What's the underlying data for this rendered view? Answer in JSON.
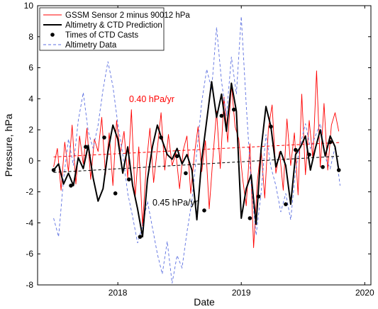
{
  "chart_data": {
    "type": "line",
    "xlabel": "Date",
    "ylabel": "Pressure, hPa",
    "xlim": [
      2017.35,
      2020.05
    ],
    "ylim": [
      -8,
      10
    ],
    "xticks": [
      2018,
      2019,
      2020
    ],
    "yticks": [
      -8,
      -6,
      -4,
      -2,
      0,
      2,
      4,
      6,
      8,
      10
    ],
    "grid": false,
    "legend_position": "top-left",
    "colors": {
      "gssm": "#ff0000",
      "prediction": "#000000",
      "casts": "#000000",
      "altimetry": "#5b6fe0",
      "red_trend": "#ff0000",
      "black_trend": "#000000"
    },
    "annotations": [
      {
        "text": "0.40 hPa/yr",
        "color": "#ff0000",
        "x": 2018.1,
        "y": 4.0
      },
      {
        "text": "0.45 hPa/yr",
        "color": "#000000",
        "x": 2018.3,
        "y": -2.6
      }
    ],
    "series": [
      {
        "name": "GSSM Sensor 2 minus 90012 hPa",
        "style": "thin-line",
        "x": [
          2017.48,
          2017.51,
          2017.54,
          2017.57,
          2017.6,
          2017.63,
          2017.66,
          2017.69,
          2017.72,
          2017.75,
          2017.78,
          2017.81,
          2017.84,
          2017.87,
          2017.9,
          2017.93,
          2017.96,
          2017.99,
          2018.02,
          2018.05,
          2018.08,
          2018.11,
          2018.14,
          2018.17,
          2018.2,
          2018.23,
          2018.26,
          2018.29,
          2018.32,
          2018.35,
          2018.38,
          2018.41,
          2018.44,
          2018.47,
          2018.5,
          2018.53,
          2018.56,
          2018.59,
          2018.62,
          2018.65,
          2018.68,
          2018.71,
          2018.74,
          2018.77,
          2018.8,
          2018.83,
          2018.86,
          2018.89,
          2018.92,
          2018.95,
          2018.98,
          2019.01,
          2019.04,
          2019.07,
          2019.1,
          2019.13,
          2019.16,
          2019.19,
          2019.22,
          2019.25,
          2019.28,
          2019.31,
          2019.34,
          2019.37,
          2019.4,
          2019.43,
          2019.46,
          2019.49,
          2019.52,
          2019.55,
          2019.58,
          2019.61,
          2019.64,
          2019.67,
          2019.7,
          2019.73,
          2019.76,
          2019.79
        ],
        "y": [
          -0.4,
          0.8,
          -1.9,
          1.2,
          -0.7,
          2.3,
          -1.5,
          1.6,
          -0.2,
          2.1,
          -1.2,
          1.4,
          0.6,
          2.8,
          -0.9,
          1.8,
          -1.6,
          2.6,
          0.5,
          1.9,
          -1.1,
          3.3,
          -2.4,
          0.9,
          -4.2,
          -0.3,
          2.1,
          -1.4,
          0.8,
          3.1,
          -0.6,
          1.7,
          -0.3,
          0.5,
          -1.8,
          0.7,
          1.6,
          -2.1,
          0.4,
          2.2,
          -0.7,
          1.3,
          -3.1,
          0.2,
          3.2,
          -0.5,
          4.1,
          1.2,
          4.9,
          2.2,
          1.4,
          -1.1,
          -2.9,
          1.1,
          -5.6,
          -1.3,
          0.8,
          -2.4,
          2.1,
          3.6,
          -0.8,
          0.6,
          -1.9,
          2.7,
          -0.3,
          1.8,
          -2.2,
          4.3,
          -0.9,
          2.6,
          0.1,
          5.8,
          -0.4,
          3.7,
          -0.6,
          2.3,
          3.1,
          1.9
        ]
      },
      {
        "name": "Altimetry & CTD Prediction",
        "style": "thick-line",
        "x": [
          2017.48,
          2017.52,
          2017.56,
          2017.6,
          2017.64,
          2017.68,
          2017.72,
          2017.76,
          2017.8,
          2017.84,
          2017.88,
          2017.92,
          2017.96,
          2018.0,
          2018.04,
          2018.08,
          2018.12,
          2018.16,
          2018.2,
          2018.24,
          2018.28,
          2018.32,
          2018.36,
          2018.4,
          2018.44,
          2018.48,
          2018.52,
          2018.56,
          2018.6,
          2018.64,
          2018.68,
          2018.72,
          2018.76,
          2018.8,
          2018.84,
          2018.88,
          2018.92,
          2018.96,
          2019.0,
          2019.04,
          2019.08,
          2019.12,
          2019.16,
          2019.2,
          2019.24,
          2019.28,
          2019.32,
          2019.36,
          2019.4,
          2019.44,
          2019.48,
          2019.52,
          2019.56,
          2019.6,
          2019.64,
          2019.68,
          2019.72,
          2019.76,
          2019.79
        ],
        "y": [
          -0.6,
          -0.2,
          -1.5,
          -0.8,
          -1.6,
          0.2,
          -0.5,
          1.0,
          -1.1,
          -2.6,
          -1.8,
          0.6,
          2.3,
          1.4,
          -0.8,
          0.9,
          -1.6,
          -3.1,
          -4.9,
          -1.2,
          0.9,
          2.3,
          1.3,
          0.4,
          0.1,
          0.8,
          -0.2,
          0.4,
          -0.6,
          -3.8,
          0.1,
          2.6,
          5.1,
          2.8,
          4.3,
          1.9,
          5.0,
          3.2,
          -3.7,
          -1.8,
          -0.9,
          -4.1,
          0.7,
          3.5,
          2.2,
          -0.4,
          0.6,
          -0.3,
          -2.8,
          0.4,
          0.9,
          1.6,
          -0.6,
          0.8,
          2.0,
          0.3,
          1.6,
          0.9,
          -0.6
        ]
      },
      {
        "name": "Times of CTD Casts",
        "style": "markers",
        "x": [
          2017.48,
          2017.62,
          2017.74,
          2017.89,
          2017.98,
          2018.09,
          2018.18,
          2018.35,
          2018.48,
          2018.55,
          2018.7,
          2018.84,
          2018.94,
          2019.07,
          2019.14,
          2019.24,
          2019.36,
          2019.44,
          2019.55,
          2019.66,
          2019.72,
          2019.79
        ],
        "y": [
          -0.6,
          -1.6,
          0.9,
          1.5,
          -2.1,
          -1.2,
          -4.9,
          1.5,
          0.3,
          -0.8,
          -3.2,
          2.9,
          3.3,
          -3.7,
          -2.3,
          2.2,
          -2.8,
          0.7,
          0.4,
          -0.4,
          1.2,
          -0.6
        ]
      },
      {
        "name": "Altimetry Data",
        "style": "dashed-line",
        "x": [
          2017.48,
          2017.52,
          2017.56,
          2017.6,
          2017.64,
          2017.68,
          2017.72,
          2017.76,
          2017.8,
          2017.84,
          2017.88,
          2017.92,
          2017.96,
          2018.0,
          2018.04,
          2018.08,
          2018.12,
          2018.16,
          2018.2,
          2018.24,
          2018.28,
          2018.32,
          2018.36,
          2018.4,
          2018.44,
          2018.48,
          2018.52,
          2018.56,
          2018.6,
          2018.64,
          2018.68,
          2018.72,
          2018.76,
          2018.8,
          2018.84,
          2018.88,
          2018.92,
          2018.96,
          2019.0,
          2019.04,
          2019.08,
          2019.12,
          2019.16,
          2019.2,
          2019.24,
          2019.28,
          2019.32,
          2019.36,
          2019.4,
          2019.44,
          2019.48,
          2019.52,
          2019.56,
          2019.6,
          2019.64,
          2019.68,
          2019.72,
          2019.76,
          2019.8
        ],
        "y": [
          -3.7,
          -4.9,
          -1.2,
          1.4,
          -0.3,
          2.6,
          4.4,
          1.9,
          0.8,
          2.3,
          4.6,
          6.4,
          4.8,
          2.4,
          0.4,
          -2.1,
          -3.6,
          -5.3,
          -4.2,
          -2.6,
          -4.3,
          -6.0,
          -7.3,
          -5.2,
          -7.9,
          -6.1,
          -6.9,
          -4.6,
          -2.6,
          0.6,
          3.8,
          5.9,
          4.6,
          8.6,
          5.1,
          2.9,
          6.7,
          4.3,
          9.3,
          3.6,
          -1.4,
          -4.8,
          -2.1,
          1.7,
          -0.4,
          -1.6,
          -3.3,
          -2.1,
          -3.8,
          -0.6,
          1.1,
          2.4,
          0.8,
          1.6,
          2.4,
          0.2,
          -0.5,
          0.9,
          -1.6
        ]
      }
    ],
    "trend_lines": [
      {
        "color": "red",
        "x": [
          2017.48,
          2019.8
        ],
        "y": [
          0.25,
          1.18
        ]
      },
      {
        "color": "black",
        "x": [
          2017.48,
          2019.8
        ],
        "y": [
          -0.75,
          0.3
        ]
      }
    ]
  }
}
